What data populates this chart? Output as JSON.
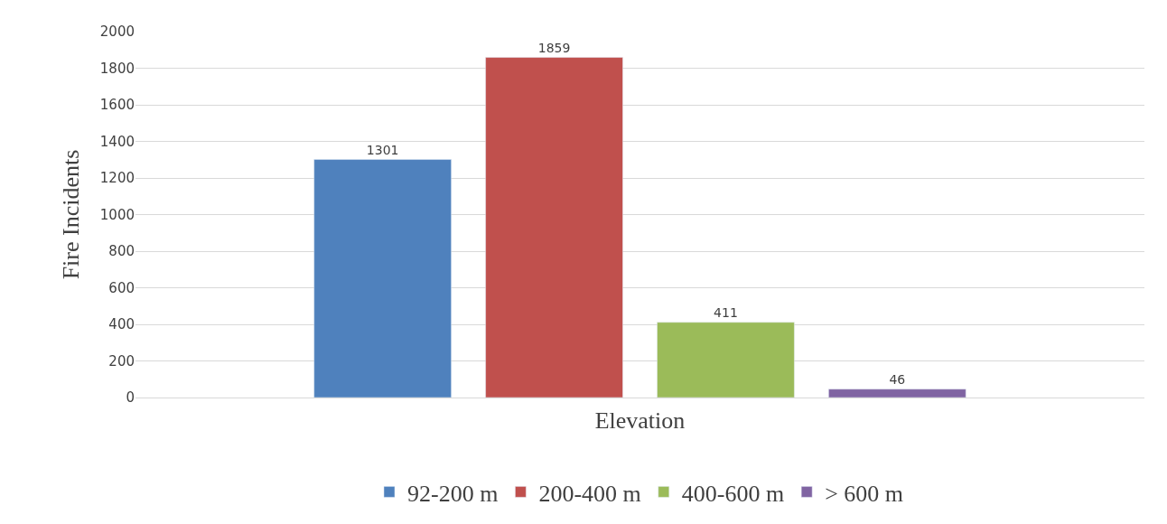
{
  "chart_data": {
    "type": "bar",
    "xlabel": "Elevation",
    "ylabel": "Fire Incidents",
    "categories": [
      null
    ],
    "series": [
      {
        "name": "92-200 m",
        "color": "#4f81bd",
        "values": [
          1301
        ]
      },
      {
        "name": "200-400 m",
        "color": "#c0504d",
        "values": [
          1859
        ]
      },
      {
        "name": "400-600 m",
        "color": "#9bbb59",
        "values": [
          411
        ]
      },
      {
        "name": "> 600 m",
        "color": "#8064a2",
        "values": [
          46
        ]
      }
    ],
    "ylim": [
      0,
      2000
    ],
    "yticks": [
      0,
      200,
      400,
      600,
      800,
      1000,
      1200,
      1400,
      1600,
      1800,
      2000
    ],
    "grid": "y",
    "legend": "bottom",
    "data_labels": true,
    "tick_labels": "y"
  }
}
